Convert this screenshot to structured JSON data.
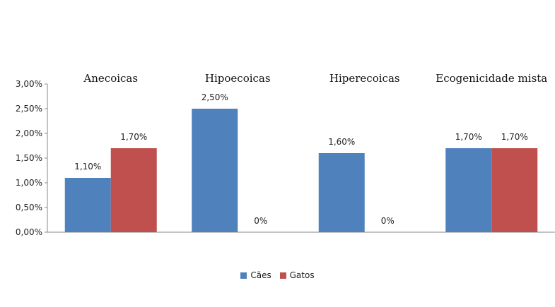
{
  "chart_data": {
    "type": "bar",
    "categories": [
      "Anecoicas",
      "Hipoecoicas",
      "Hiperecoicas",
      "Ecogenicidade mista"
    ],
    "series": [
      {
        "name": "Cães",
        "values": [
          1.1,
          2.5,
          1.6,
          1.7
        ],
        "labels": [
          "1,10%",
          "2,50%",
          "1,60%",
          "1,70%"
        ],
        "color": "#4F81BD"
      },
      {
        "name": "Gatos",
        "values": [
          1.7,
          0,
          0,
          1.7
        ],
        "labels": [
          "1,70%",
          "0%",
          "0%",
          "1,70%"
        ],
        "color": "#C0504D"
      }
    ],
    "y_ticks": [
      "0,00%",
      "0,50%",
      "1,00%",
      "1,50%",
      "2,00%",
      "2,50%",
      "3,00%"
    ],
    "ylim": [
      0,
      3
    ],
    "title": "",
    "xlabel": "",
    "ylabel": "",
    "grid": false,
    "legend_position": "bottom"
  }
}
